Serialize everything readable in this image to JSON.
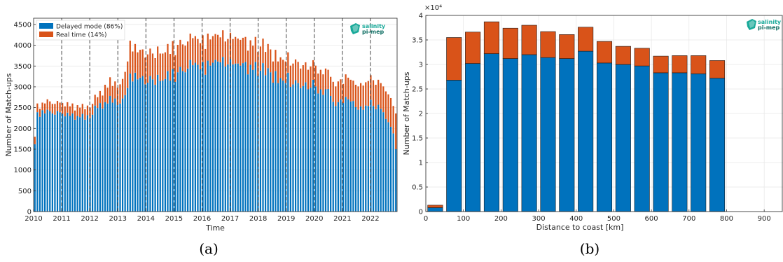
{
  "colors": {
    "delayed": "#0072BD",
    "realtime": "#D95319",
    "logo": "#18A999",
    "logo_dark": "#0E6E63",
    "axis": "#262626",
    "grid": "#E6E6E6"
  },
  "logo": {
    "line1": "salinity",
    "line2": "pi-mep",
    "icon": "salinity-pi-mep-logo-icon"
  },
  "captions": {
    "a": "(a)",
    "b": "(b)"
  },
  "chart_data": [
    {
      "type": "bar",
      "stacked": true,
      "xlabel": "Time",
      "ylabel": "Number of Match-ups",
      "xlim": [
        2010,
        2022.95
      ],
      "ylim": [
        0,
        4650
      ],
      "yticks": [
        0,
        500,
        1000,
        1500,
        2000,
        2500,
        3000,
        3500,
        4000,
        4500
      ],
      "xticks": [
        2010,
        2011,
        2012,
        2013,
        2014,
        2015,
        2016,
        2017,
        2018,
        2019,
        2020,
        2021,
        2022
      ],
      "vlines": [
        2011,
        2012,
        2013,
        2014,
        2015,
        2016,
        2017,
        2018,
        2019,
        2020,
        2021,
        2022
      ],
      "grid": true,
      "legend_position": "top-left",
      "legend": [
        "Delayed mode (86%)",
        "Real time (14%)"
      ],
      "x_start": 2010.0,
      "x_step_years": 0.0833,
      "series": [
        {
          "values": [
            1620,
            2390,
            2280,
            2440,
            2360,
            2450,
            2410,
            2360,
            2330,
            2420,
            2390,
            2350,
            2290,
            2380,
            2300,
            2360,
            2210,
            2300,
            2270,
            2350,
            2210,
            2320,
            2250,
            2330,
            2550,
            2490,
            2610,
            2480,
            2630,
            2600,
            2780,
            2620,
            2720,
            2560,
            2600,
            2720,
            2800,
            2970,
            3320,
            3130,
            3340,
            3180,
            3220,
            3260,
            3060,
            3100,
            3260,
            3180,
            3050,
            3290,
            3140,
            3150,
            3190,
            3380,
            3150,
            3430,
            3120,
            3350,
            3480,
            3380,
            3350,
            3440,
            3650,
            3520,
            3580,
            3530,
            3420,
            3600,
            3290,
            3630,
            3510,
            3580,
            3650,
            3610,
            3590,
            3720,
            3490,
            3540,
            3670,
            3540,
            3560,
            3560,
            3510,
            3570,
            3600,
            3300,
            3530,
            3410,
            3600,
            3270,
            3390,
            3570,
            3280,
            3450,
            3350,
            3100,
            3380,
            3090,
            3210,
            3150,
            3090,
            3340,
            3000,
            3060,
            3160,
            3090,
            2970,
            3020,
            3110,
            2940,
            2980,
            3170,
            3010,
            2840,
            2940,
            2810,
            2940,
            2950,
            2780,
            2640,
            2540,
            2630,
            2700,
            2610,
            2760,
            2700,
            2650,
            2660,
            2510,
            2450,
            2530,
            2450,
            2550,
            2540,
            2690,
            2540,
            2460,
            2570,
            2470,
            2390,
            2230,
            2150,
            2040,
            1880,
            1500
          ]
        },
        {
          "values": [
            180,
            210,
            190,
            180,
            240,
            250,
            240,
            230,
            260,
            240,
            230,
            260,
            240,
            250,
            230,
            240,
            220,
            260,
            230,
            240,
            250,
            230,
            250,
            260,
            260,
            260,
            290,
            310,
            420,
            380,
            450,
            400,
            410,
            420,
            460,
            470,
            560,
            640,
            790,
            720,
            690,
            650,
            670,
            640,
            640,
            680,
            660,
            620,
            640,
            680,
            660,
            650,
            640,
            650,
            640,
            670,
            640,
            660,
            650,
            640,
            640,
            650,
            630,
            650,
            640,
            620,
            630,
            640,
            620,
            650,
            630,
            640,
            620,
            640,
            600,
            640,
            600,
            610,
            630,
            610,
            640,
            600,
            620,
            610,
            600,
            570,
            590,
            580,
            600,
            570,
            580,
            590,
            560,
            580,
            550,
            510,
            510,
            520,
            500,
            500,
            520,
            490,
            510,
            500,
            500,
            510,
            470,
            500,
            480,
            470,
            510,
            470,
            500,
            480,
            470,
            490,
            500,
            460,
            460,
            480,
            470,
            500,
            480,
            460,
            540,
            520,
            520,
            490,
            540,
            560,
            560,
            580,
            560,
            600,
            590,
            620,
            590,
            600,
            620,
            620,
            660,
            670,
            690,
            660,
            860
          ]
        }
      ]
    },
    {
      "type": "bar",
      "stacked": true,
      "xlabel": "Distance to coast [km]",
      "ylabel": "Number of Match-ups",
      "y_multiplier": "×10⁴",
      "xlim": [
        0,
        950
      ],
      "ylim": [
        0,
        4
      ],
      "xticks": [
        0,
        100,
        200,
        300,
        400,
        500,
        600,
        700,
        800,
        900
      ],
      "yticks": [
        0,
        0.5,
        1,
        1.5,
        2,
        2.5,
        3,
        3.5,
        4
      ],
      "grid": true,
      "x_centers": [
        25,
        75,
        125,
        175,
        225,
        275,
        325,
        375,
        425,
        475,
        525,
        575,
        625,
        675,
        725,
        775
      ],
      "series": [
        {
          "values": [
            0.08,
            2.68,
            3.02,
            3.22,
            3.12,
            3.2,
            3.14,
            3.12,
            3.27,
            3.03,
            3.0,
            2.97,
            2.83,
            2.83,
            2.81,
            2.72
          ]
        },
        {
          "values": [
            0.05,
            0.87,
            0.64,
            0.65,
            0.62,
            0.6,
            0.53,
            0.49,
            0.49,
            0.44,
            0.37,
            0.36,
            0.34,
            0.35,
            0.37,
            0.36
          ]
        }
      ]
    }
  ]
}
